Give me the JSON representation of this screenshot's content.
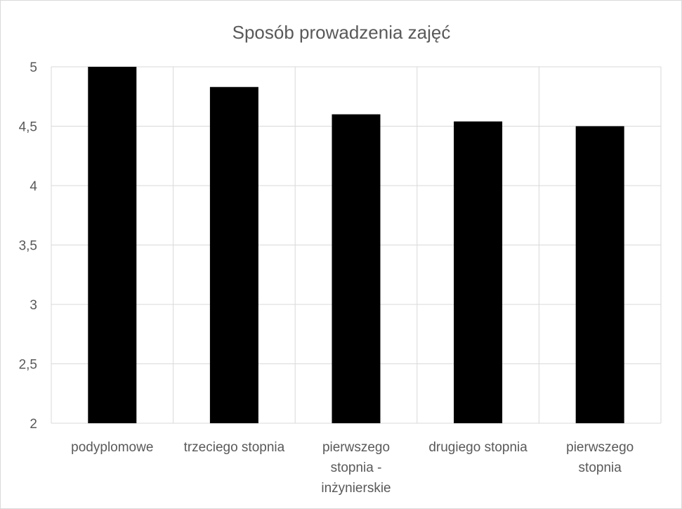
{
  "chart_data": {
    "type": "bar",
    "title": "Sposób prowadzenia zajęć",
    "categories": [
      "podyplomowe",
      "trzeciego stopnia",
      "pierwszego stopnia - inżynierskie",
      "drugiego stopnia",
      "pierwszego stopnia"
    ],
    "category_lines": [
      [
        "podyplomowe"
      ],
      [
        "trzeciego stopnia"
      ],
      [
        "pierwszego",
        "stopnia -",
        "inżynierskie"
      ],
      [
        "drugiego stopnia"
      ],
      [
        "pierwszego",
        "stopnia"
      ]
    ],
    "values": [
      5.0,
      4.83,
      4.6,
      4.54,
      4.5
    ],
    "yticks": [
      "2",
      "2,5",
      "3",
      "3,5",
      "4",
      "4,5",
      "5"
    ],
    "ylim": [
      2,
      5
    ],
    "xlabel": "",
    "ylabel": "",
    "grid": true,
    "colors": {
      "bar": "#000000",
      "grid": "#d9d9d9",
      "text": "#595959"
    }
  }
}
